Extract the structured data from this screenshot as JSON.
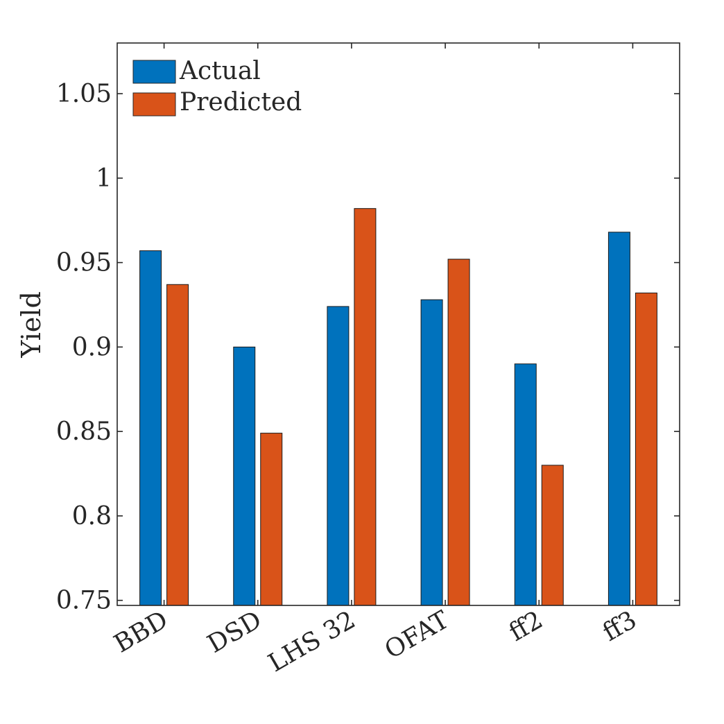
{
  "chart_data": {
    "type": "bar",
    "categories": [
      "BBD",
      "DSD",
      "LHS 32",
      "OFAT",
      "ff2",
      "ff3"
    ],
    "series": [
      {
        "name": "Actual",
        "color": "#0072BD",
        "values": [
          0.957,
          0.9,
          0.924,
          0.928,
          0.89,
          0.968
        ]
      },
      {
        "name": "Predicted",
        "color": "#D95319",
        "values": [
          0.937,
          0.849,
          0.982,
          0.952,
          0.83,
          0.932
        ]
      }
    ],
    "ylabel": "Yield",
    "xlabel": "",
    "title": "",
    "ylim": [
      0.747,
      1.08
    ],
    "yticks": [
      0.75,
      0.8,
      0.85,
      0.9,
      0.95,
      1,
      1.05
    ],
    "ytick_labels": [
      "0.75",
      "0.8",
      "0.85",
      "0.9",
      "0.95",
      "1",
      "1.05"
    ],
    "grid": false,
    "legend_position": "top-left"
  }
}
